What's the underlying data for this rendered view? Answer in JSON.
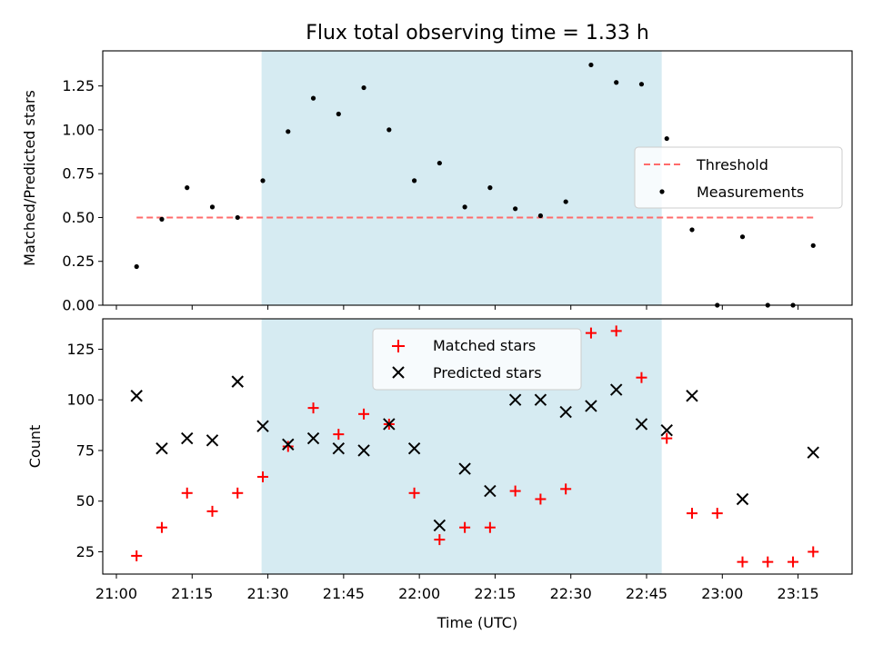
{
  "figure_title": "Flux total observing time = 1.33 h",
  "xlabel": "Time (UTC)",
  "x_ticks": [
    "21:00",
    "21:15",
    "21:30",
    "21:45",
    "22:00",
    "22:15",
    "22:30",
    "22:45",
    "23:00",
    "23:15"
  ],
  "x_tick_minutes": [
    0,
    15,
    30,
    45,
    60,
    75,
    90,
    105,
    120,
    135
  ],
  "x_range_minutes": [
    -2.7,
    145.7
  ],
  "observing_window_minutes": [
    28.75,
    108.0
  ],
  "colors": {
    "window": "#add8e6",
    "threshold": "#ff6b6b",
    "measurements": "#000000",
    "matched": "#ff0000",
    "predicted": "#000000"
  },
  "chart_data": [
    {
      "type": "scatter",
      "panel": "top",
      "ylabel": "Matched/Predicted stars",
      "ylim": [
        0,
        1.45
      ],
      "y_ticks": [
        "0.00",
        "0.25",
        "0.50",
        "0.75",
        "1.00",
        "1.25"
      ],
      "y_tick_values": [
        0,
        0.25,
        0.5,
        0.75,
        1.0,
        1.25
      ],
      "legend": {
        "placement": "right",
        "entries": [
          "Threshold",
          "Measurements"
        ]
      },
      "threshold": {
        "name": "Threshold",
        "value": 0.5,
        "x_from": "21:04",
        "x_to": "23:18"
      },
      "series": [
        {
          "name": "Measurements",
          "x": [
            "21:04",
            "21:09",
            "21:14",
            "21:19",
            "21:24",
            "21:29",
            "21:34",
            "21:39",
            "21:44",
            "21:49",
            "21:54",
            "21:59",
            "22:04",
            "22:09",
            "22:14",
            "22:19",
            "22:24",
            "22:29",
            "22:34",
            "22:39",
            "22:44",
            "22:49",
            "22:54",
            "22:59",
            "23:04",
            "23:09",
            "23:14",
            "23:18"
          ],
          "y": [
            0.22,
            0.49,
            0.67,
            0.56,
            0.5,
            0.71,
            0.99,
            1.18,
            1.09,
            1.24,
            1.0,
            0.71,
            0.81,
            0.56,
            0.67,
            0.55,
            0.51,
            0.59,
            1.37,
            1.27,
            1.26,
            0.95,
            0.43,
            0.0,
            0.39,
            0.0,
            0.0,
            0.34
          ]
        }
      ]
    },
    {
      "type": "scatter",
      "panel": "bottom",
      "ylabel": "Count",
      "ylim": [
        14,
        140
      ],
      "y_ticks": [
        "25",
        "50",
        "75",
        "100",
        "125"
      ],
      "y_tick_values": [
        25,
        50,
        75,
        100,
        125
      ],
      "legend": {
        "placement": "top-center",
        "entries": [
          "Matched stars",
          "Predicted stars"
        ]
      },
      "series": [
        {
          "name": "Matched stars",
          "x": [
            "21:04",
            "21:09",
            "21:14",
            "21:19",
            "21:24",
            "21:29",
            "21:34",
            "21:39",
            "21:44",
            "21:49",
            "21:54",
            "21:59",
            "22:04",
            "22:09",
            "22:14",
            "22:19",
            "22:24",
            "22:29",
            "22:34",
            "22:39",
            "22:44",
            "22:49",
            "22:54",
            "22:59",
            "23:04",
            "23:09",
            "23:14",
            "23:18"
          ],
          "y": [
            23,
            37,
            54,
            45,
            54,
            62,
            77,
            96,
            83,
            93,
            88,
            54,
            31,
            37,
            37,
            55,
            51,
            56,
            133,
            134,
            111,
            81,
            44,
            44,
            20,
            20,
            20,
            25
          ]
        },
        {
          "name": "Predicted stars",
          "x": [
            "21:04",
            "21:09",
            "21:14",
            "21:19",
            "21:24",
            "21:29",
            "21:34",
            "21:39",
            "21:44",
            "21:49",
            "21:54",
            "21:59",
            "22:04",
            "22:09",
            "22:14",
            "22:19",
            "22:24",
            "22:29",
            "22:34",
            "22:39",
            "22:44",
            "22:49",
            "22:54",
            "23:04",
            "23:18"
          ],
          "y": [
            102,
            76,
            81,
            80,
            109,
            87,
            78,
            81,
            76,
            75,
            88,
            76,
            38,
            66,
            55,
            100,
            100,
            94,
            97,
            105,
            88,
            85,
            102,
            51,
            74
          ]
        }
      ]
    }
  ]
}
